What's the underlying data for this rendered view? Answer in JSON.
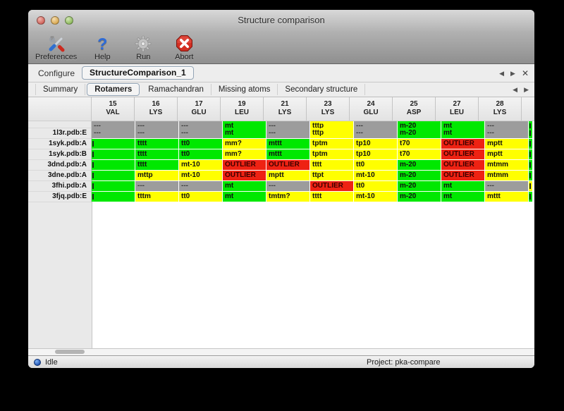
{
  "window": {
    "title": "Structure comparison"
  },
  "toolbar": {
    "buttons": [
      {
        "label": "Preferences"
      },
      {
        "label": "Help"
      },
      {
        "label": "Run"
      },
      {
        "label": "Abort"
      }
    ]
  },
  "configure": {
    "label": "Configure",
    "selected_config": "StructureComparison_1",
    "nav": {
      "prev": "◀",
      "next": "▶",
      "close": "✕"
    }
  },
  "tabs": {
    "items": [
      "Summary",
      "Rotamers",
      "Ramachandran",
      "Missing atoms",
      "Secondary structure"
    ],
    "active": "Rotamers",
    "nav": {
      "prev": "◀",
      "next": "▶"
    }
  },
  "table": {
    "columns": [
      {
        "num": "15",
        "res": "VAL"
      },
      {
        "num": "16",
        "res": "LYS"
      },
      {
        "num": "17",
        "res": "GLU"
      },
      {
        "num": "19",
        "res": "LEU"
      },
      {
        "num": "21",
        "res": "LYS"
      },
      {
        "num": "23",
        "res": "LYS"
      },
      {
        "num": "24",
        "res": "GLU"
      },
      {
        "num": "25",
        "res": "ASP"
      },
      {
        "num": "27",
        "res": "LEU"
      },
      {
        "num": "28",
        "res": "LYS"
      }
    ],
    "partial_row": {
      "name": "",
      "cells": [
        {
          "t": "---",
          "c": "gray"
        },
        {
          "t": "---",
          "c": "gray"
        },
        {
          "t": "---",
          "c": "gray"
        },
        {
          "t": "mt",
          "c": "green"
        },
        {
          "t": "---",
          "c": "gray"
        },
        {
          "t": "tttp",
          "c": "yellow"
        },
        {
          "t": "---",
          "c": "gray"
        },
        {
          "t": "m-20",
          "c": "green"
        },
        {
          "t": "mt",
          "c": "green"
        },
        {
          "t": "---",
          "c": "gray"
        }
      ],
      "edge": "green"
    },
    "rows": [
      {
        "name": "1l3r.pdb:E",
        "cells": [
          {
            "t": "---",
            "c": "gray"
          },
          {
            "t": "---",
            "c": "gray"
          },
          {
            "t": "---",
            "c": "gray"
          },
          {
            "t": "mt",
            "c": "green"
          },
          {
            "t": "---",
            "c": "gray"
          },
          {
            "t": "tttp",
            "c": "yellow"
          },
          {
            "t": "---",
            "c": "gray"
          },
          {
            "t": "m-20",
            "c": "green"
          },
          {
            "t": "mt",
            "c": "green"
          },
          {
            "t": "---",
            "c": "gray"
          }
        ],
        "edge": "green"
      },
      {
        "name": "1syk.pdb:A",
        "cells": [
          {
            "t": "",
            "c": "green",
            "f": 1
          },
          {
            "t": "tttt",
            "c": "green"
          },
          {
            "t": "tt0",
            "c": "green"
          },
          {
            "t": "mm?",
            "c": "yellow"
          },
          {
            "t": "mttt",
            "c": "green"
          },
          {
            "t": "tptm",
            "c": "yellow"
          },
          {
            "t": "tp10",
            "c": "yellow"
          },
          {
            "t": "t70",
            "c": "yellow"
          },
          {
            "t": "OUTLIER",
            "c": "red"
          },
          {
            "t": "mptt",
            "c": "yellow"
          }
        ],
        "edge": "green"
      },
      {
        "name": "1syk.pdb:B",
        "cells": [
          {
            "t": "",
            "c": "green",
            "f": 1
          },
          {
            "t": "tttt",
            "c": "green"
          },
          {
            "t": "tt0",
            "c": "green"
          },
          {
            "t": "mm?",
            "c": "yellow"
          },
          {
            "t": "mttt",
            "c": "green"
          },
          {
            "t": "tptm",
            "c": "yellow"
          },
          {
            "t": "tp10",
            "c": "yellow"
          },
          {
            "t": "t70",
            "c": "yellow"
          },
          {
            "t": "OUTLIER",
            "c": "red"
          },
          {
            "t": "mptt",
            "c": "yellow"
          }
        ],
        "edge": "green"
      },
      {
        "name": "3dnd.pdb:A",
        "cells": [
          {
            "t": "",
            "c": "green",
            "f": 1
          },
          {
            "t": "tttt",
            "c": "green"
          },
          {
            "t": "mt-10",
            "c": "yellow"
          },
          {
            "t": "OUTLIER",
            "c": "red"
          },
          {
            "t": "OUTLIER",
            "c": "red"
          },
          {
            "t": "tttt",
            "c": "yellow"
          },
          {
            "t": "tt0",
            "c": "yellow"
          },
          {
            "t": "m-20",
            "c": "green"
          },
          {
            "t": "OUTLIER",
            "c": "red"
          },
          {
            "t": "mtmm",
            "c": "yellow"
          }
        ],
        "edge": "green"
      },
      {
        "name": "3dne.pdb:A",
        "cells": [
          {
            "t": "",
            "c": "green",
            "f": 1
          },
          {
            "t": "mttp",
            "c": "yellow"
          },
          {
            "t": "mt-10",
            "c": "yellow"
          },
          {
            "t": "OUTLIER",
            "c": "red"
          },
          {
            "t": "mptt",
            "c": "yellow"
          },
          {
            "t": "ttpt",
            "c": "yellow"
          },
          {
            "t": "mt-10",
            "c": "yellow"
          },
          {
            "t": "m-20",
            "c": "green"
          },
          {
            "t": "OUTLIER",
            "c": "red"
          },
          {
            "t": "mtmm",
            "c": "yellow"
          }
        ],
        "edge": "green"
      },
      {
        "name": "3fhi.pdb:A",
        "cells": [
          {
            "t": "",
            "c": "green",
            "f": 1
          },
          {
            "t": "---",
            "c": "gray"
          },
          {
            "t": "---",
            "c": "gray"
          },
          {
            "t": "mt",
            "c": "green"
          },
          {
            "t": "---",
            "c": "gray"
          },
          {
            "t": "OUTLIER",
            "c": "red"
          },
          {
            "t": "tt0",
            "c": "yellow"
          },
          {
            "t": "m-20",
            "c": "green"
          },
          {
            "t": "mt",
            "c": "green"
          },
          {
            "t": "---",
            "c": "gray"
          }
        ],
        "edge": "yellow"
      },
      {
        "name": "3fjq.pdb:E",
        "cells": [
          {
            "t": "",
            "c": "green",
            "f": 1
          },
          {
            "t": "tttm",
            "c": "yellow"
          },
          {
            "t": "tt0",
            "c": "yellow"
          },
          {
            "t": "mt",
            "c": "green"
          },
          {
            "t": "tmtm?",
            "c": "yellow"
          },
          {
            "t": "tttt",
            "c": "yellow"
          },
          {
            "t": "mt-10",
            "c": "yellow"
          },
          {
            "t": "m-20",
            "c": "green"
          },
          {
            "t": "mt",
            "c": "green"
          },
          {
            "t": "mttt",
            "c": "yellow"
          }
        ],
        "edge": "green"
      }
    ]
  },
  "status": {
    "left": "Idle",
    "right": "Project: pka-compare"
  },
  "colors": {
    "green": "#00e800",
    "yellow": "#ffff00",
    "red": "#ee2213",
    "gray": "#9c9c9c",
    "help_blue": "#2d6bd8"
  }
}
